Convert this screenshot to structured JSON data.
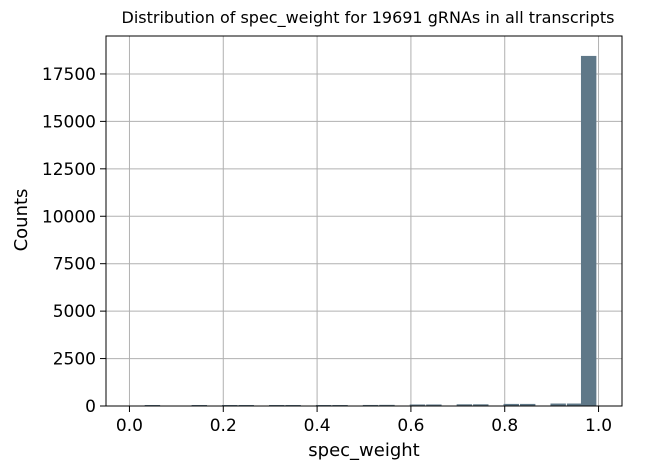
{
  "chart_data": {
    "type": "bar",
    "title": "Distribution of spec_weight for 19691 gRNAs in all transcripts",
    "xlabel": "spec_weight",
    "ylabel": "Counts",
    "xlim": [
      -0.05,
      1.05
    ],
    "ylim": [
      0,
      19500
    ],
    "x_ticks": [
      "0.0",
      "0.2",
      "0.4",
      "0.6",
      "0.8",
      "1.0"
    ],
    "y_ticks": [
      "0",
      "2500",
      "5000",
      "7500",
      "10000",
      "12500",
      "15000",
      "17500"
    ],
    "grid": true,
    "bin_width": 0.035,
    "bins": [
      {
        "x": 0.05,
        "value": 30
      },
      {
        "x": 0.15,
        "value": 35
      },
      {
        "x": 0.215,
        "value": 40
      },
      {
        "x": 0.25,
        "value": 40
      },
      {
        "x": 0.315,
        "value": 45
      },
      {
        "x": 0.35,
        "value": 45
      },
      {
        "x": 0.415,
        "value": 45
      },
      {
        "x": 0.45,
        "value": 50
      },
      {
        "x": 0.515,
        "value": 55
      },
      {
        "x": 0.55,
        "value": 60
      },
      {
        "x": 0.615,
        "value": 80
      },
      {
        "x": 0.65,
        "value": 80
      },
      {
        "x": 0.715,
        "value": 90
      },
      {
        "x": 0.75,
        "value": 90
      },
      {
        "x": 0.815,
        "value": 110
      },
      {
        "x": 0.85,
        "value": 110
      },
      {
        "x": 0.915,
        "value": 130
      },
      {
        "x": 0.95,
        "value": 130
      },
      {
        "x": 0.98,
        "value": 18450
      }
    ],
    "colors": {
      "bar": "#5f7888",
      "grid": "#b0b0b0",
      "axis": "#000000"
    }
  }
}
